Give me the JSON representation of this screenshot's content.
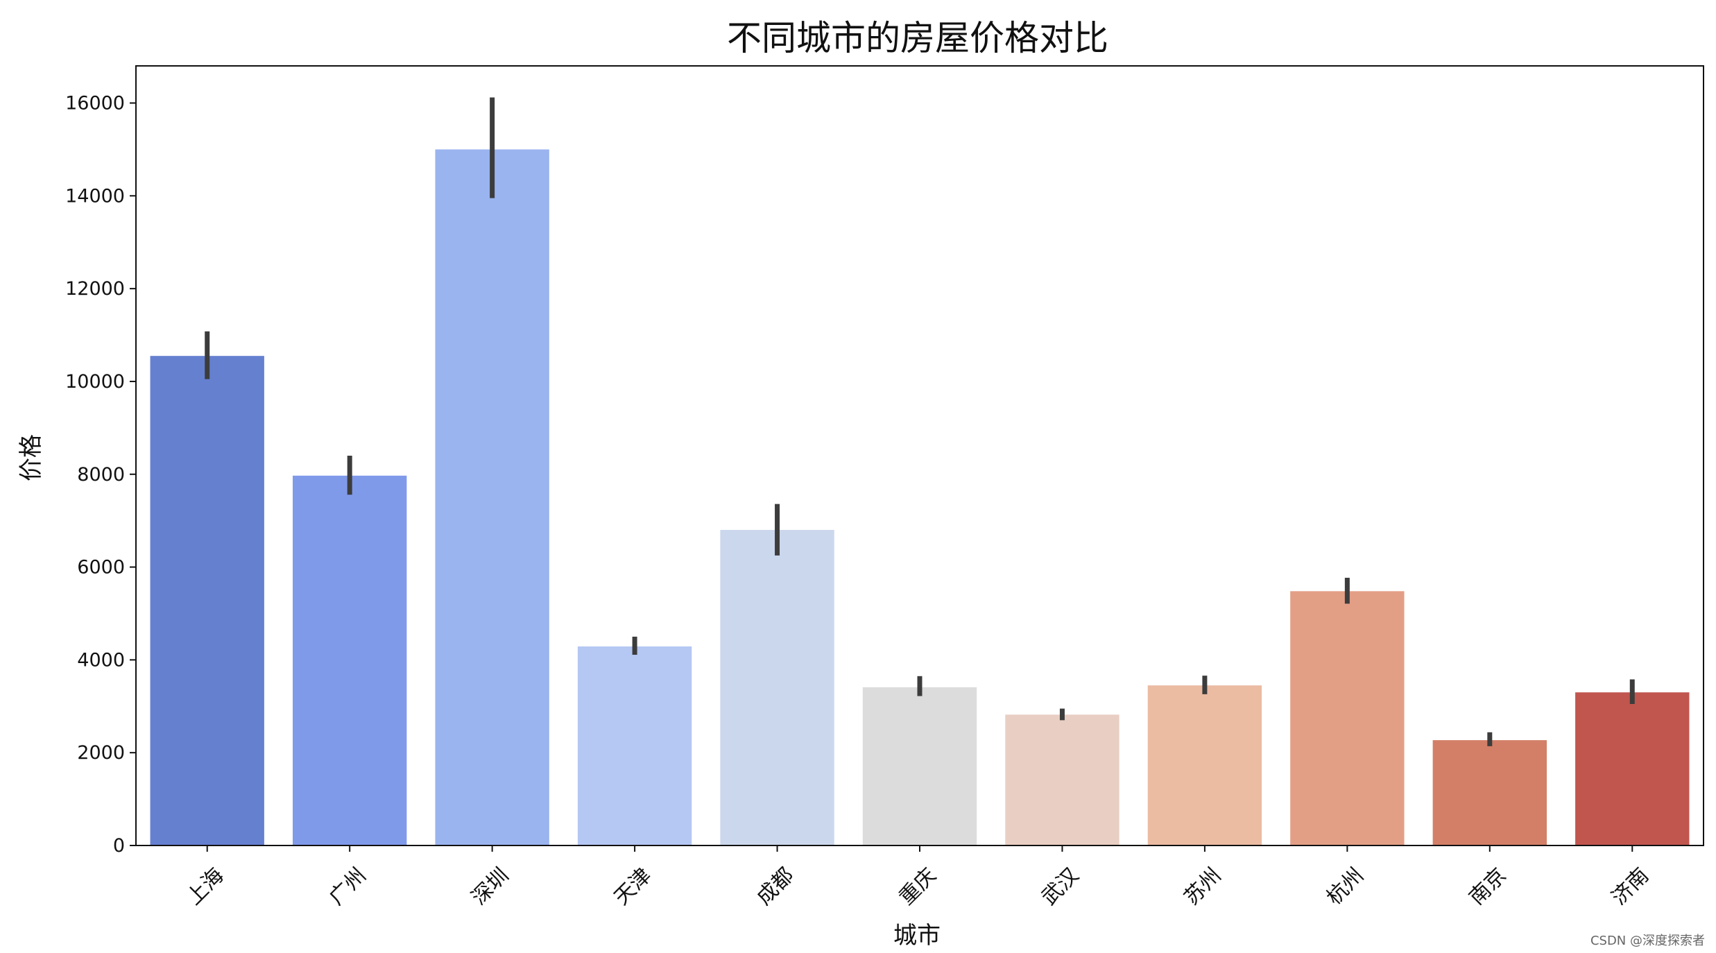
{
  "chart_data": {
    "type": "bar",
    "title": "不同城市的房屋价格对比",
    "xlabel": "城市",
    "ylabel": "价格",
    "ylim": [
      0,
      16800
    ],
    "yticks": [
      0,
      2000,
      4000,
      6000,
      8000,
      10000,
      12000,
      14000,
      16000
    ],
    "ytick_labels": [
      "0",
      "2000",
      "4000",
      "6000",
      "8000",
      "10000",
      "12000",
      "14000",
      "16000"
    ],
    "categories": [
      "上海",
      "广州",
      "深圳",
      "天津",
      "成都",
      "重庆",
      "武汉",
      "苏州",
      "杭州",
      "南京",
      "济南"
    ],
    "values": [
      10550,
      7970,
      15000,
      4290,
      6800,
      3410,
      2820,
      3450,
      5480,
      2270,
      3300
    ],
    "error_low": [
      10050,
      7560,
      13950,
      4110,
      6250,
      3220,
      2700,
      3260,
      5210,
      2140,
      3050
    ],
    "error_high": [
      11080,
      8400,
      16120,
      4500,
      7360,
      3650,
      2950,
      3660,
      5770,
      2440,
      3580
    ],
    "colors": [
      "#6680d0",
      "#809aea",
      "#9ab4f0",
      "#b5c7f3",
      "#cbd7ed",
      "#dcdcdc",
      "#e9cfc3",
      "#ebbba2",
      "#e39f86",
      "#d37f67",
      "#c1564f"
    ],
    "error_color": "#3c3c3c",
    "grid": false,
    "legend": "none"
  },
  "watermark": "CSDN @深度探索者"
}
